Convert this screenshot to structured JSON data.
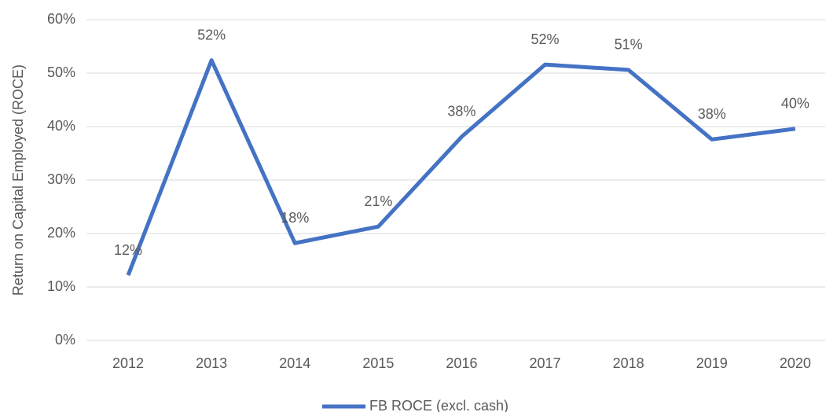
{
  "chart_data": {
    "type": "line",
    "y_label": "Return on Capital Employed (ROCE)",
    "categories": [
      "2012",
      "2013",
      "2014",
      "2015",
      "2016",
      "2017",
      "2018",
      "2019",
      "2020"
    ],
    "series": [
      {
        "name": "FB ROCE (excl. cash)",
        "color": "#4472c4",
        "values": [
          12.2,
          52.4,
          18.2,
          21.3,
          38.1,
          51.6,
          50.6,
          37.6,
          39.6
        ],
        "value_labels": [
          "12%",
          "52%",
          "18%",
          "21%",
          "38%",
          "52%",
          "51%",
          "38%",
          "40%"
        ]
      }
    ],
    "ylim": [
      0,
      60
    ],
    "yticks": [
      {
        "value": 0,
        "label": "0%"
      },
      {
        "value": 10,
        "label": "10%"
      },
      {
        "value": 20,
        "label": "20%"
      },
      {
        "value": 30,
        "label": "30%"
      },
      {
        "value": 40,
        "label": "40%"
      },
      {
        "value": 50,
        "label": "50%"
      },
      {
        "value": 60,
        "label": "60%"
      }
    ],
    "grid": true,
    "legend": "bottom"
  }
}
